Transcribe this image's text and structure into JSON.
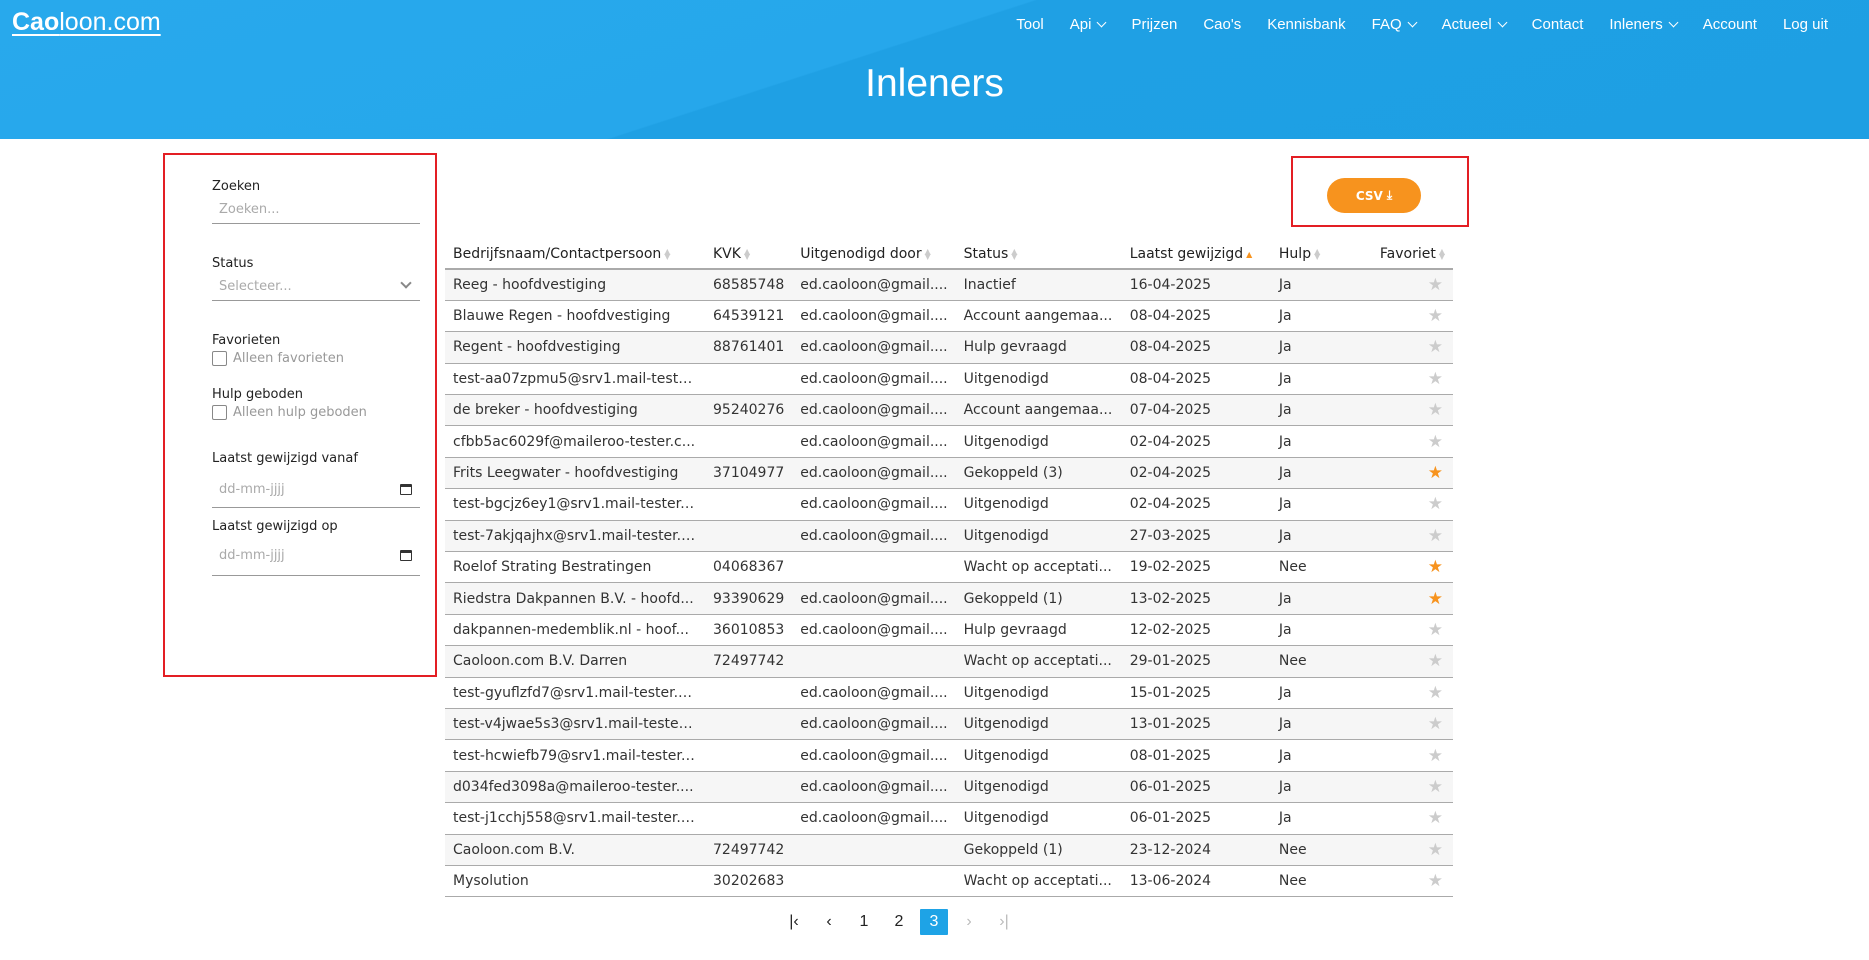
{
  "header": {
    "logo_bold": "Cao",
    "logo_rest": "loon.com",
    "title": "Inleners",
    "nav": [
      {
        "label": "Tool",
        "dropdown": false
      },
      {
        "label": "Api",
        "dropdown": true
      },
      {
        "label": "Prijzen",
        "dropdown": false
      },
      {
        "label": "Cao's",
        "dropdown": false
      },
      {
        "label": "Kennisbank",
        "dropdown": false
      },
      {
        "label": "FAQ",
        "dropdown": true
      },
      {
        "label": "Actueel",
        "dropdown": true
      },
      {
        "label": "Contact",
        "dropdown": false
      },
      {
        "label": "Inleners",
        "dropdown": true
      },
      {
        "label": "Account",
        "dropdown": false
      },
      {
        "label": "Log uit",
        "dropdown": false
      }
    ]
  },
  "filters": {
    "search_label": "Zoeken",
    "search_placeholder": "Zoeken...",
    "status_label": "Status",
    "status_placeholder": "Selecteer...",
    "fav_label": "Favorieten",
    "fav_checkbox": "Alleen favorieten",
    "help_label": "Hulp geboden",
    "help_checkbox": "Alleen hulp geboden",
    "from_label": "Laatst gewijzigd vanaf",
    "from_placeholder": "dd-mm-jjjj",
    "on_label": "Laatst gewijzigd op",
    "on_placeholder": "dd-mm-jjjj"
  },
  "csv_label": "CSV",
  "colors": {
    "accent": "#f7931e",
    "header": "#26a7eb",
    "highlight_box": "#e31e24"
  },
  "table": {
    "headers": [
      "Bedrijfsnaam/Contactpersoon",
      "KVK",
      "Uitgenodigd door",
      "Status",
      "Laatst gewijzigd",
      "Hulp",
      "Favoriet"
    ],
    "sorted_column": "Laatst gewijzigd",
    "rows": [
      [
        "Reeg - hoofdvestiging",
        "68585748",
        "ed.caoloon@gmail....",
        "Inactief",
        "16-04-2025",
        "Ja",
        false
      ],
      [
        "Blauwe Regen - hoofdvestiging",
        "64539121",
        "ed.caoloon@gmail....",
        "Account aangemaa...",
        "08-04-2025",
        "Ja",
        false
      ],
      [
        "Regent - hoofdvestiging",
        "88761401",
        "ed.caoloon@gmail....",
        "Hulp gevraagd",
        "08-04-2025",
        "Ja",
        false
      ],
      [
        "test-aa07zpmu5@srv1.mail-teste...",
        "",
        "ed.caoloon@gmail....",
        "Uitgenodigd",
        "08-04-2025",
        "Ja",
        false
      ],
      [
        "de breker - hoofdvestiging",
        "95240276",
        "ed.caoloon@gmail....",
        "Account aangemaa...",
        "07-04-2025",
        "Ja",
        false
      ],
      [
        "cfbb5ac6029f@maileroo-tester.c...",
        "",
        "ed.caoloon@gmail....",
        "Uitgenodigd",
        "02-04-2025",
        "Ja",
        false
      ],
      [
        "Frits Leegwater - hoofdvestiging",
        "37104977",
        "ed.caoloon@gmail....",
        "Gekoppeld (3)",
        "02-04-2025",
        "Ja",
        true
      ],
      [
        "test-bgcjz6ey1@srv1.mail-tester....",
        "",
        "ed.caoloon@gmail....",
        "Uitgenodigd",
        "02-04-2025",
        "Ja",
        false
      ],
      [
        "test-7akjqajhx@srv1.mail-tester.c...",
        "",
        "ed.caoloon@gmail....",
        "Uitgenodigd",
        "27-03-2025",
        "Ja",
        false
      ],
      [
        "Roelof Strating Bestratingen",
        "04068367",
        "",
        "Wacht op acceptati...",
        "19-02-2025",
        "Nee",
        true
      ],
      [
        "Riedstra Dakpannen B.V. - hoofd...",
        "93390629",
        "ed.caoloon@gmail....",
        "Gekoppeld (1)",
        "13-02-2025",
        "Ja",
        true
      ],
      [
        "dakpannen-medemblik.nl - hoof...",
        "36010853",
        "ed.caoloon@gmail....",
        "Hulp gevraagd",
        "12-02-2025",
        "Ja",
        false
      ],
      [
        "Caoloon.com B.V. Darren",
        "72497742",
        "",
        "Wacht op acceptati...",
        "29-01-2025",
        "Nee",
        false
      ],
      [
        "test-gyuflzfd7@srv1.mail-tester.c...",
        "",
        "ed.caoloon@gmail....",
        "Uitgenodigd",
        "15-01-2025",
        "Ja",
        false
      ],
      [
        "test-v4jwae5s3@srv1.mail-tester....",
        "",
        "ed.caoloon@gmail....",
        "Uitgenodigd",
        "13-01-2025",
        "Ja",
        false
      ],
      [
        "test-hcwiefb79@srv1.mail-tester....",
        "",
        "ed.caoloon@gmail....",
        "Uitgenodigd",
        "08-01-2025",
        "Ja",
        false
      ],
      [
        "d034fed3098a@maileroo-tester....",
        "",
        "ed.caoloon@gmail....",
        "Uitgenodigd",
        "06-01-2025",
        "Ja",
        false
      ],
      [
        "test-j1cchj558@srv1.mail-tester.c...",
        "",
        "ed.caoloon@gmail....",
        "Uitgenodigd",
        "06-01-2025",
        "Ja",
        false
      ],
      [
        "Caoloon.com B.V.",
        "72497742",
        "",
        "Gekoppeld (1)",
        "23-12-2024",
        "Nee",
        false
      ],
      [
        "Mysolution",
        "30202683",
        "",
        "Wacht op acceptati...",
        "13-06-2024",
        "Nee",
        false
      ]
    ]
  },
  "pagination": {
    "pages": [
      "1",
      "2",
      "3"
    ],
    "current": "3"
  }
}
